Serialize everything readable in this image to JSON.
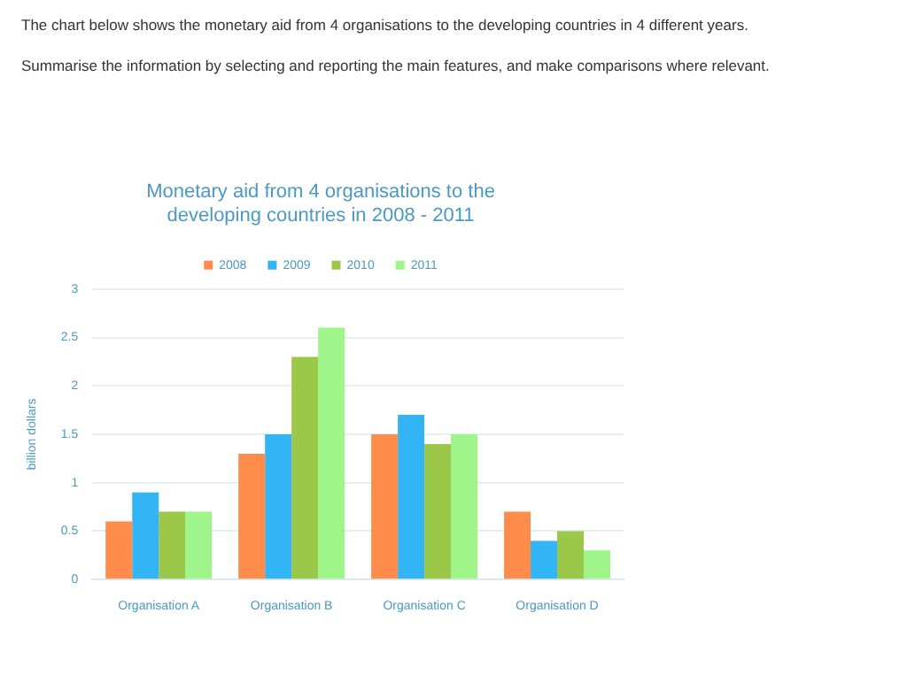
{
  "chart_data": {
    "type": "bar",
    "title": "Monetary aid from 4 organisations to the developing countries in 2008 - 2011",
    "annotations": [
      "The chart below shows the monetary aid from 4 organisations to the developing countries in 4 different years.",
      "Summarise the information by selecting and reporting the main features, and make comparisons where relevant."
    ],
    "ylabel": "billion dollars",
    "categories": [
      "Organisation A",
      "Organisation B",
      "Organisation C",
      "Organisation D"
    ],
    "series": [
      {
        "name": "2008",
        "color": "#ff8c4a",
        "values": [
          0.6,
          1.3,
          1.5,
          0.7
        ]
      },
      {
        "name": "2009",
        "color": "#33b5f5",
        "values": [
          0.9,
          1.5,
          1.7,
          0.4
        ]
      },
      {
        "name": "2010",
        "color": "#9cc84a",
        "values": [
          0.7,
          2.3,
          1.4,
          0.5
        ]
      },
      {
        "name": "2011",
        "color": "#9ff58a",
        "values": [
          0.7,
          2.6,
          1.5,
          0.3
        ]
      }
    ],
    "ylim": [
      0,
      3
    ],
    "yticks": [
      0,
      0.5,
      1,
      1.5,
      2,
      2.5,
      3
    ],
    "grid": "y",
    "legend": "top"
  }
}
